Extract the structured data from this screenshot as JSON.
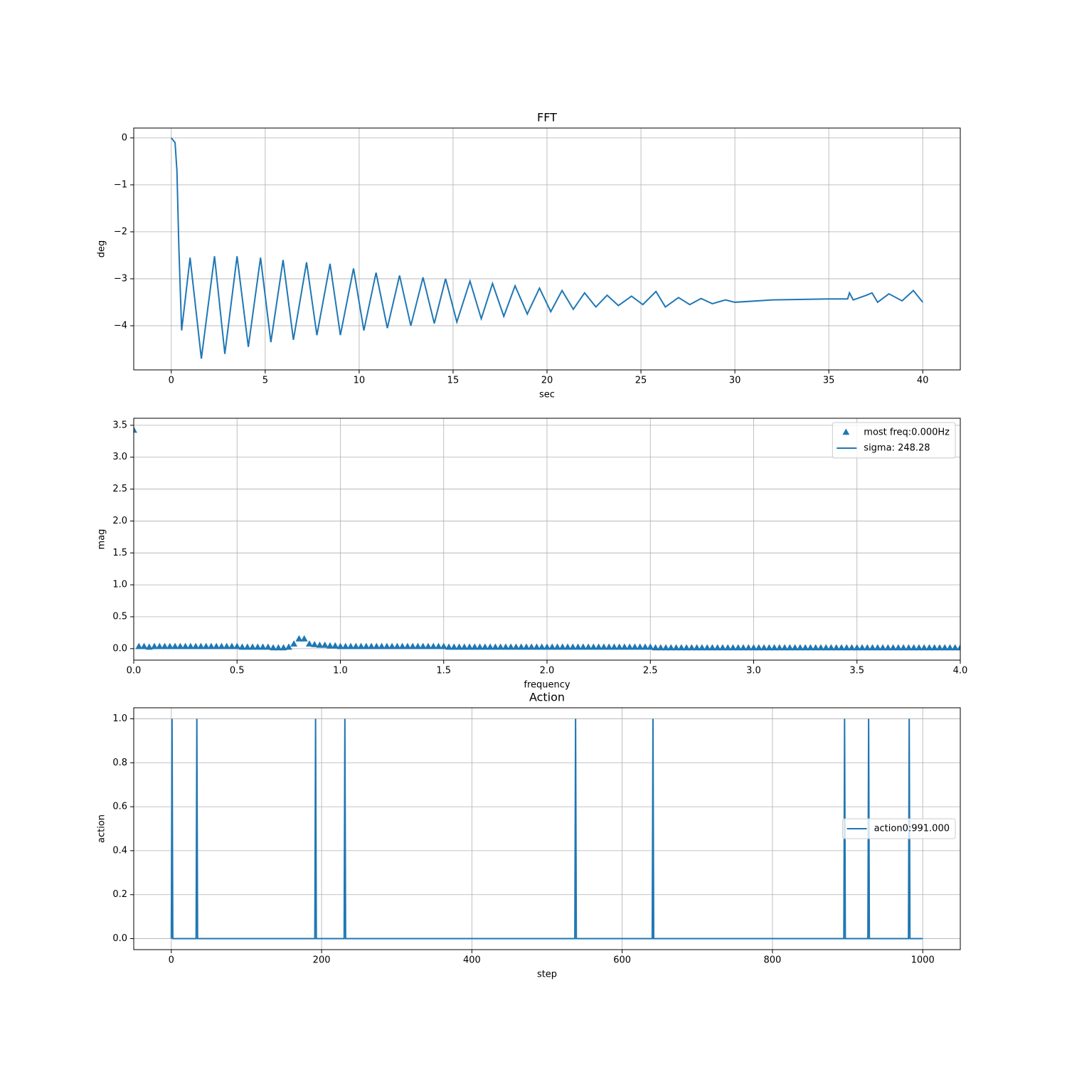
{
  "chart_data": [
    {
      "type": "line",
      "title": "FFT",
      "xlabel": "sec",
      "ylabel": "deg",
      "color": "#1f77b4",
      "grid": true,
      "xlim": [
        -2,
        42
      ],
      "ylim": [
        -4.94,
        0.21
      ],
      "xticks": [
        0,
        5,
        10,
        15,
        20,
        25,
        30,
        35,
        40
      ],
      "yticks": [
        {
          "value": 0,
          "label": "0"
        },
        {
          "value": -1,
          "label": "−1"
        },
        {
          "value": -2,
          "label": "−2"
        },
        {
          "value": -3,
          "label": "−3"
        },
        {
          "value": -4,
          "label": "−4"
        }
      ],
      "x": [
        0,
        0.2,
        0.3,
        0.4,
        0.55,
        1.0,
        1.6,
        2.3,
        2.85,
        3.5,
        4.1,
        4.75,
        5.3,
        5.95,
        6.5,
        7.2,
        7.75,
        8.45,
        9.0,
        9.7,
        10.25,
        10.9,
        11.5,
        12.15,
        12.75,
        13.4,
        14.0,
        14.6,
        15.2,
        15.9,
        16.5,
        17.1,
        17.7,
        18.3,
        18.95,
        19.6,
        20.2,
        20.8,
        21.4,
        22.0,
        22.6,
        23.2,
        23.8,
        24.5,
        25.1,
        25.8,
        26.3,
        27.0,
        27.6,
        28.2,
        28.8,
        29.5,
        30.0,
        32.0,
        35.0,
        36.0,
        36.1,
        36.3,
        37.0,
        37.3,
        37.6,
        38.2,
        38.9,
        39.5,
        40.0
      ],
      "values": [
        0,
        -0.1,
        -0.7,
        -2.3,
        -4.1,
        -2.55,
        -4.7,
        -2.52,
        -4.6,
        -2.52,
        -4.45,
        -2.55,
        -4.35,
        -2.6,
        -4.3,
        -2.65,
        -4.2,
        -2.68,
        -4.2,
        -2.78,
        -4.1,
        -2.87,
        -4.05,
        -2.93,
        -4.0,
        -2.97,
        -3.95,
        -3.0,
        -3.92,
        -3.05,
        -3.85,
        -3.1,
        -3.8,
        -3.15,
        -3.75,
        -3.2,
        -3.7,
        -3.25,
        -3.65,
        -3.3,
        -3.6,
        -3.35,
        -3.57,
        -3.37,
        -3.55,
        -3.27,
        -3.6,
        -3.4,
        -3.55,
        -3.42,
        -3.53,
        -3.45,
        -3.5,
        -3.45,
        -3.43,
        -3.43,
        -3.3,
        -3.45,
        -3.35,
        -3.3,
        -3.5,
        -3.32,
        -3.47,
        -3.25,
        -3.5
      ]
    },
    {
      "type": "stem",
      "xlabel": "frequency",
      "ylabel": "mag",
      "grid": true,
      "legend": "upper right",
      "xlim": [
        0,
        4
      ],
      "ylim": [
        -0.18,
        3.61
      ],
      "xticks": [
        {
          "value": 0,
          "label": "0.0"
        },
        0.5,
        {
          "value": 1,
          "label": "1.0"
        },
        1.5,
        {
          "value": 2,
          "label": "2.0"
        },
        2.5,
        {
          "value": 3,
          "label": "3.0"
        },
        3.5,
        {
          "value": 4,
          "label": "4.0"
        }
      ],
      "yticks": [
        {
          "value": 0,
          "label": "0.0"
        },
        0.5,
        {
          "value": 1,
          "label": "1.0"
        },
        1.5,
        {
          "value": 2,
          "label": "2.0"
        },
        2.5,
        {
          "value": 3,
          "label": "3.0"
        },
        3.5
      ],
      "x": [
        0,
        0.025,
        0.05,
        0.075,
        0.1,
        0.125,
        0.15,
        0.175,
        0.2,
        0.225,
        0.25,
        0.275,
        0.3,
        0.325,
        0.35,
        0.375,
        0.4,
        0.425,
        0.45,
        0.475,
        0.5,
        0.525,
        0.55,
        0.575,
        0.6,
        0.625,
        0.65,
        0.675,
        0.7,
        0.725,
        0.75,
        0.775,
        0.8,
        0.825,
        0.85,
        0.875,
        0.9,
        0.925,
        0.95,
        0.975,
        1.0,
        1.025,
        1.05,
        1.075,
        1.1,
        1.125,
        1.15,
        1.175,
        1.2,
        1.225,
        1.25,
        1.275,
        1.3,
        1.325,
        1.35,
        1.375,
        1.4,
        1.425,
        1.45,
        1.475,
        1.5,
        1.525,
        1.55,
        1.575,
        1.6,
        1.625,
        1.65,
        1.675,
        1.7,
        1.725,
        1.75,
        1.775,
        1.8,
        1.825,
        1.85,
        1.875,
        1.9,
        1.925,
        1.95,
        1.975,
        2.0,
        2.025,
        2.05,
        2.075,
        2.1,
        2.125,
        2.15,
        2.175,
        2.2,
        2.225,
        2.25,
        2.275,
        2.3,
        2.325,
        2.35,
        2.375,
        2.4,
        2.425,
        2.45,
        2.475,
        2.5,
        2.525,
        2.55,
        2.575,
        2.6,
        2.625,
        2.65,
        2.675,
        2.7,
        2.725,
        2.75,
        2.775,
        2.8,
        2.825,
        2.85,
        2.875,
        2.9,
        2.925,
        2.95,
        2.975,
        3.0,
        3.025,
        3.05,
        3.075,
        3.1,
        3.125,
        3.15,
        3.175,
        3.2,
        3.225,
        3.25,
        3.275,
        3.3,
        3.325,
        3.35,
        3.375,
        3.4,
        3.425,
        3.45,
        3.475,
        3.5,
        3.525,
        3.55,
        3.575,
        3.6,
        3.625,
        3.65,
        3.675,
        3.7,
        3.725,
        3.75,
        3.775,
        3.8,
        3.825,
        3.85,
        3.875,
        3.9,
        3.925,
        3.95,
        3.975,
        4.0
      ],
      "series": [
        {
          "name": "most freq:0.000Hz",
          "color": "#1f77b4",
          "marker": "triangle",
          "values": [
            3.42,
            0.03,
            0.03,
            0.02,
            0.03,
            0.03,
            0.03,
            0.03,
            0.03,
            0.03,
            0.03,
            0.03,
            0.03,
            0.03,
            0.03,
            0.03,
            0.03,
            0.03,
            0.03,
            0.03,
            0.03,
            0.02,
            0.02,
            0.02,
            0.02,
            0.02,
            0.02,
            0.01,
            0.01,
            0.01,
            0.02,
            0.07,
            0.15,
            0.15,
            0.07,
            0.06,
            0.05,
            0.05,
            0.04,
            0.04,
            0.03,
            0.03,
            0.03,
            0.03,
            0.03,
            0.03,
            0.03,
            0.03,
            0.03,
            0.03,
            0.03,
            0.03,
            0.03,
            0.03,
            0.03,
            0.03,
            0.03,
            0.03,
            0.03,
            0.03,
            0.03,
            0.02,
            0.02,
            0.02,
            0.02,
            0.02,
            0.02,
            0.02,
            0.02,
            0.02,
            0.02,
            0.02,
            0.02,
            0.02,
            0.02,
            0.02,
            0.02,
            0.02,
            0.02,
            0.02,
            0.02,
            0.02,
            0.02,
            0.02,
            0.02,
            0.02,
            0.02,
            0.02,
            0.02,
            0.02,
            0.02,
            0.02,
            0.02,
            0.02,
            0.02,
            0.02,
            0.02,
            0.02,
            0.02,
            0.02,
            0.02,
            0.01,
            0.01,
            0.01,
            0.01,
            0.01,
            0.01,
            0.01,
            0.01,
            0.01,
            0.01,
            0.01,
            0.01,
            0.01,
            0.01,
            0.01,
            0.01,
            0.01,
            0.01,
            0.01,
            0.01,
            0.01,
            0.01,
            0.01,
            0.01,
            0.01,
            0.01,
            0.01,
            0.01,
            0.01,
            0.01,
            0.01,
            0.01,
            0.01,
            0.01,
            0.01,
            0.01,
            0.01,
            0.01,
            0.01,
            0.01,
            0.01,
            0.01,
            0.01,
            0.01,
            0.01,
            0.01,
            0.01,
            0.01,
            0.01,
            0.01,
            0.01,
            0.01,
            0.01,
            0.01,
            0.01,
            0.01,
            0.01,
            0.01,
            0.01,
            0.01
          ]
        },
        {
          "name": "sigma: 248.28",
          "color": "#1f77b4",
          "marker": "line"
        }
      ]
    },
    {
      "type": "line",
      "title": "Action",
      "xlabel": "step",
      "ylabel": "action",
      "grid": true,
      "legend": "center right",
      "xlim": [
        -50,
        1050
      ],
      "ylim": [
        -0.05,
        1.05
      ],
      "xticks": [
        0,
        200,
        400,
        600,
        800,
        1000
      ],
      "yticks": [
        {
          "value": 0,
          "label": "0.0"
        },
        0.2,
        0.4,
        0.6,
        0.8,
        {
          "value": 1,
          "label": "1.0"
        }
      ],
      "x": [
        0,
        1,
        2,
        33,
        34,
        35,
        191,
        192,
        193,
        230,
        231,
        232,
        537,
        538,
        539,
        640,
        641,
        642,
        895,
        896,
        897,
        927,
        928,
        929,
        981,
        982,
        983,
        1000
      ],
      "series": [
        {
          "name": "action0:991.000",
          "color": "#1f77b4",
          "marker": "line",
          "values": [
            0,
            1,
            0,
            0,
            1,
            0,
            0,
            1,
            0,
            0,
            1,
            0,
            0,
            1,
            0,
            0,
            1,
            0,
            0,
            1,
            0,
            0,
            1,
            0,
            0,
            1,
            0,
            0
          ]
        }
      ]
    }
  ]
}
